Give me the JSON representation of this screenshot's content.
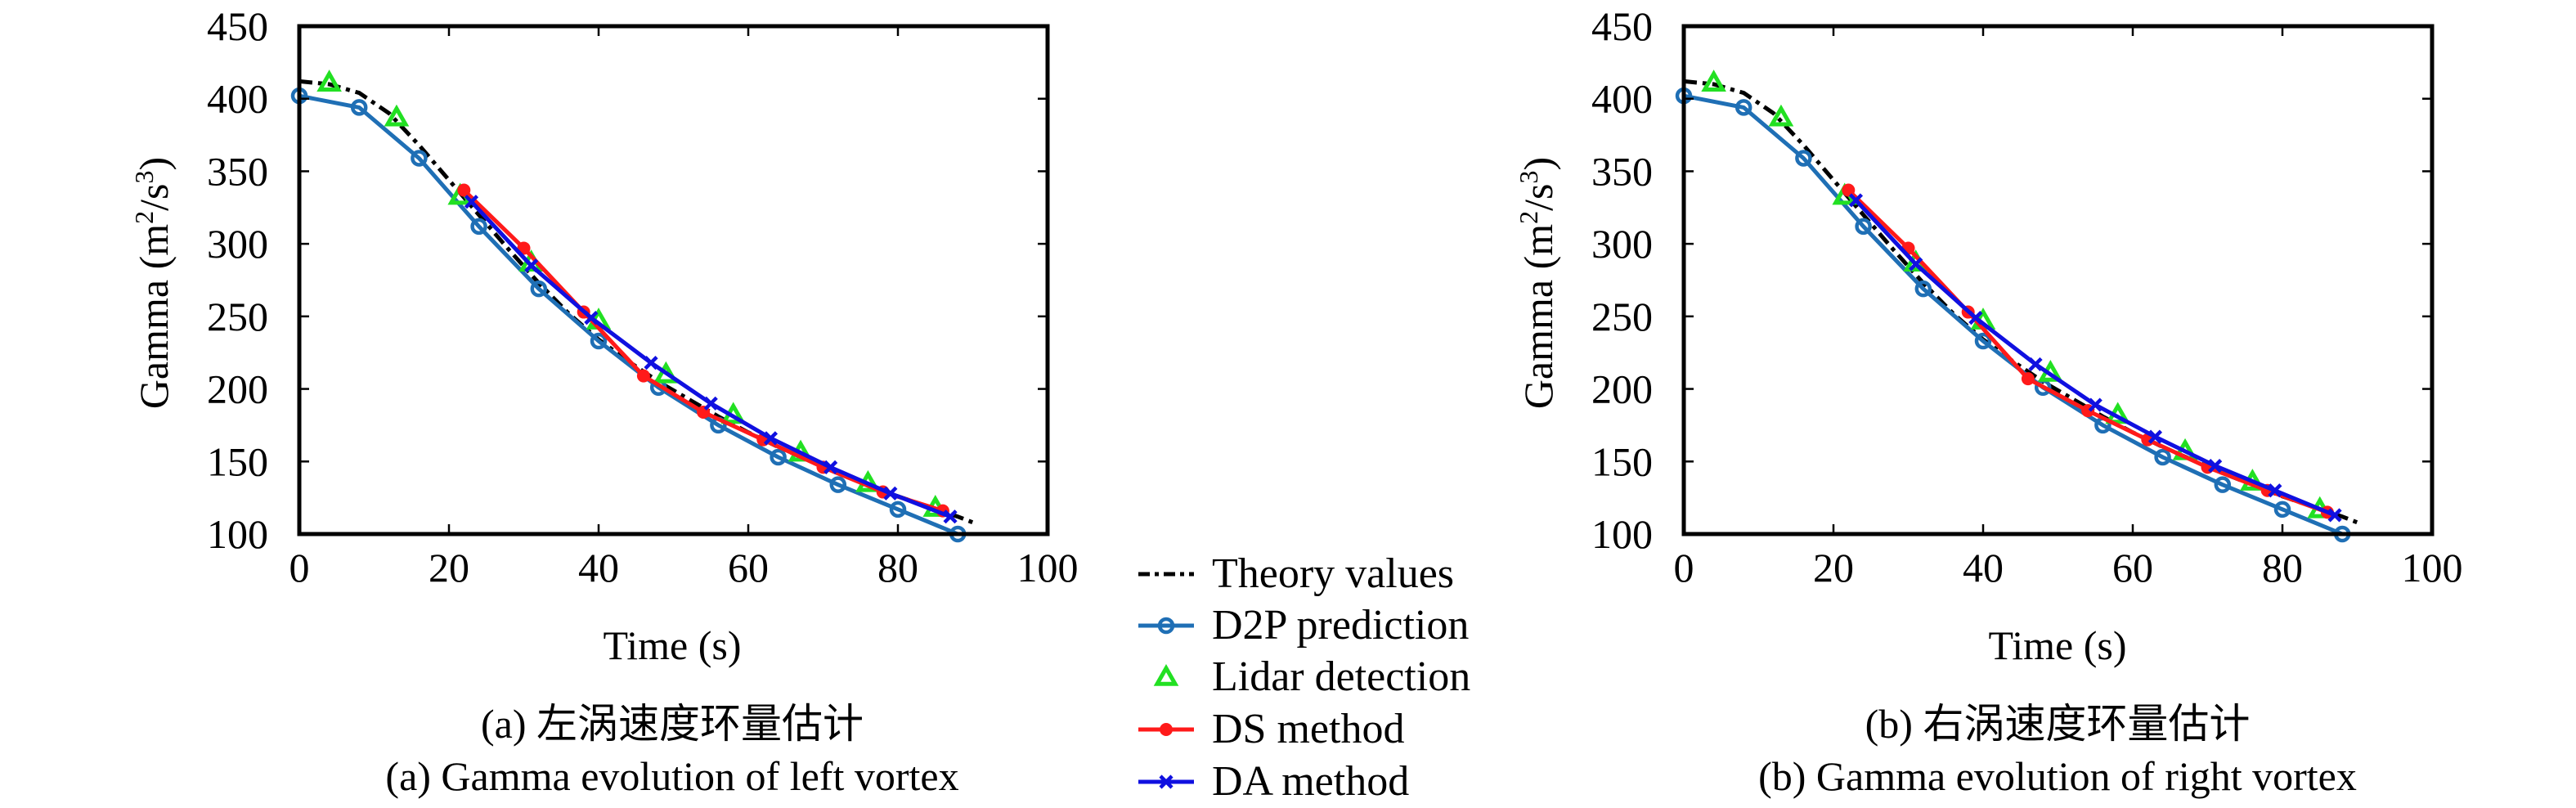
{
  "legend": {
    "entries": [
      {
        "label": "Theory values",
        "color": "#000000",
        "marker": "none",
        "style": "dashdot"
      },
      {
        "label": "D2P prediction",
        "color": "#1f6fb5",
        "marker": "circle",
        "style": "solid"
      },
      {
        "label": "Lidar detection",
        "color": "#22e022",
        "marker": "triangle",
        "style": "none"
      },
      {
        "label": "DS method",
        "color": "#ff1a1a",
        "marker": "dot",
        "style": "solid"
      },
      {
        "label": "DA method",
        "color": "#1010e0",
        "marker": "x",
        "style": "solid"
      }
    ]
  },
  "chart_data": [
    {
      "type": "line",
      "caption_cn": "(a) 左涡速度环量估计",
      "caption_en": "(a) Gamma evolution of left vortex",
      "xlabel": "Time (s)",
      "ylabel": "Gamma (m²/s³)",
      "ylabel_main": "Gamma (m",
      "ylabel_sup1": "2",
      "ylabel_mid": "/s",
      "ylabel_sup2": "3",
      "ylabel_end": ")",
      "xlim": [
        0,
        100
      ],
      "ylim": [
        100,
        450
      ],
      "xticks": [
        "0",
        "20",
        "40",
        "60",
        "80",
        "100"
      ],
      "yticks": [
        "100",
        "150",
        "200",
        "250",
        "300",
        "350",
        "400",
        "450"
      ],
      "xtick_values": [
        0,
        20,
        40,
        60,
        80,
        100
      ],
      "ytick_values": [
        100,
        150,
        200,
        250,
        300,
        350,
        400,
        450
      ],
      "grid": false,
      "series": [
        {
          "name": "Theory values",
          "x": [
            0,
            4,
            8,
            12,
            16,
            20,
            24,
            28,
            32,
            36,
            40,
            44,
            48,
            52,
            56,
            60,
            64,
            68,
            72,
            76,
            80,
            84,
            88,
            90
          ],
          "y": [
            412,
            410,
            404,
            390,
            368,
            344,
            320,
            296,
            273,
            252,
            234,
            219,
            205,
            193,
            181,
            170,
            160,
            151,
            142,
            134,
            126,
            119,
            112,
            108
          ]
        },
        {
          "name": "D2P prediction",
          "x": [
            0,
            8,
            16,
            24,
            32,
            40,
            48,
            56,
            64,
            72,
            80,
            88
          ],
          "y": [
            402,
            394,
            359,
            312,
            269,
            233,
            201,
            175,
            153,
            134,
            117,
            100
          ]
        },
        {
          "name": "Lidar detection",
          "x": [
            4,
            13,
            21.5,
            31,
            40,
            49,
            58,
            67,
            76,
            85
          ],
          "y": [
            411,
            387,
            333,
            287,
            247,
            210,
            182,
            156,
            135,
            118
          ]
        },
        {
          "name": "DS method",
          "x": [
            22,
            30,
            38,
            46,
            54,
            62,
            70,
            78,
            86
          ],
          "y": [
            337,
            297,
            253,
            209,
            184,
            165,
            146,
            129,
            116
          ]
        },
        {
          "name": "DA method",
          "x": [
            23,
            31,
            39,
            47,
            55,
            63,
            71,
            79,
            87
          ],
          "y": [
            329,
            285,
            249,
            218,
            190,
            166,
            146,
            128,
            112
          ]
        }
      ]
    },
    {
      "type": "line",
      "caption_cn": "(b) 右涡速度环量估计",
      "caption_en": "(b) Gamma evolution of right vortex",
      "xlabel": "Time (s)",
      "ylabel": "Gamma (m²/s³)",
      "ylabel_main": "Gamma (m",
      "ylabel_sup1": "2",
      "ylabel_mid": "/s",
      "ylabel_sup2": "3",
      "ylabel_end": ")",
      "xlim": [
        0,
        100
      ],
      "ylim": [
        100,
        450
      ],
      "xticks": [
        "0",
        "20",
        "40",
        "60",
        "80",
        "100"
      ],
      "yticks": [
        "100",
        "150",
        "200",
        "250",
        "300",
        "350",
        "400",
        "450"
      ],
      "xtick_values": [
        0,
        20,
        40,
        60,
        80,
        100
      ],
      "ytick_values": [
        100,
        150,
        200,
        250,
        300,
        350,
        400,
        450
      ],
      "grid": false,
      "series": [
        {
          "name": "Theory values",
          "x": [
            0,
            4,
            8,
            12,
            16,
            20,
            24,
            28,
            32,
            36,
            40,
            44,
            48,
            52,
            56,
            60,
            64,
            68,
            72,
            76,
            80,
            84,
            88,
            90
          ],
          "y": [
            412,
            410,
            404,
            390,
            368,
            344,
            320,
            296,
            273,
            252,
            234,
            219,
            205,
            193,
            181,
            170,
            160,
            151,
            142,
            134,
            126,
            119,
            112,
            108
          ]
        },
        {
          "name": "D2P prediction",
          "x": [
            0,
            8,
            16,
            24,
            32,
            40,
            48,
            56,
            64,
            72,
            80,
            88
          ],
          "y": [
            402,
            394,
            359,
            312,
            269,
            233,
            201,
            175,
            153,
            134,
            117,
            100
          ]
        },
        {
          "name": "Lidar detection",
          "x": [
            4,
            13,
            21.5,
            31,
            40,
            49,
            58,
            67,
            76,
            85
          ],
          "y": [
            411,
            387,
            333,
            287,
            247,
            211,
            182,
            157,
            136,
            117
          ]
        },
        {
          "name": "DS method",
          "x": [
            22,
            30,
            38,
            46,
            54,
            62,
            70,
            78,
            86
          ],
          "y": [
            337,
            297,
            253,
            207,
            185,
            165,
            146,
            130,
            115
          ]
        },
        {
          "name": "DA method",
          "x": [
            23,
            31,
            39,
            47,
            55,
            63,
            71,
            79,
            87
          ],
          "y": [
            330,
            286,
            249,
            217,
            189,
            167,
            147,
            130,
            113
          ]
        }
      ]
    }
  ]
}
